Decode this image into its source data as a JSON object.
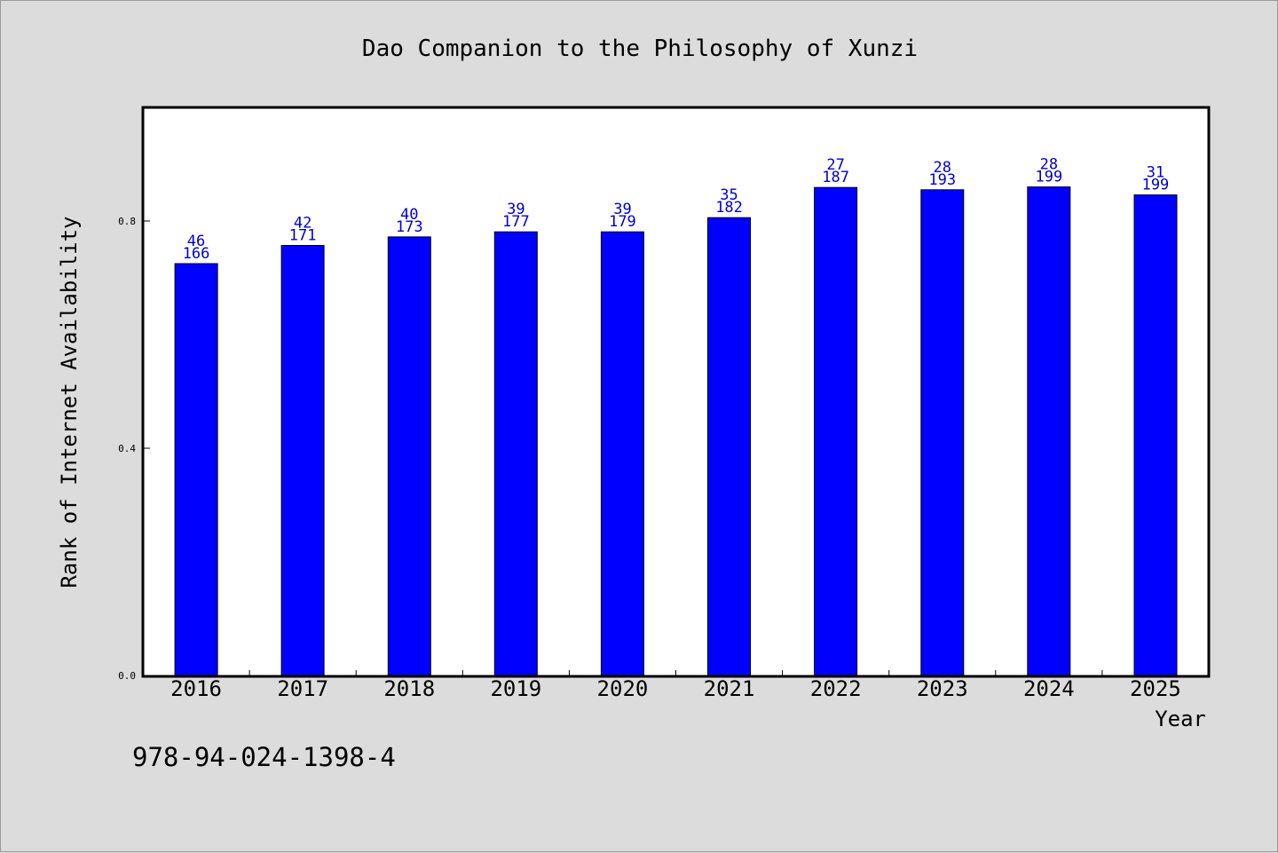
{
  "chart_data": {
    "type": "bar",
    "title": "Dao Companion to the Philosophy of Xunzi",
    "xlabel": "Year",
    "ylabel": "Rank of Internet Availability",
    "categories": [
      "2016",
      "2017",
      "2018",
      "2019",
      "2020",
      "2021",
      "2022",
      "2023",
      "2024",
      "2025"
    ],
    "values": [
      0.725,
      0.757,
      0.772,
      0.781,
      0.781,
      0.806,
      0.859,
      0.855,
      0.86,
      0.846
    ],
    "annotations": [
      [
        "46",
        "166"
      ],
      [
        "42",
        "171"
      ],
      [
        "40",
        "173"
      ],
      [
        "39",
        "177"
      ],
      [
        "39",
        "179"
      ],
      [
        "35",
        "182"
      ],
      [
        "27",
        "187"
      ],
      [
        "28",
        "193"
      ],
      [
        "28",
        "199"
      ],
      [
        "31",
        "199"
      ]
    ],
    "yticks": [
      "0.0",
      "0.4",
      "0.8"
    ],
    "ylim": [
      0,
      1.0
    ],
    "bar_color": "#0000ff",
    "label_color": "#0000cc",
    "grid": false
  },
  "footer": {
    "isbn": "978-94-024-1398-4"
  }
}
